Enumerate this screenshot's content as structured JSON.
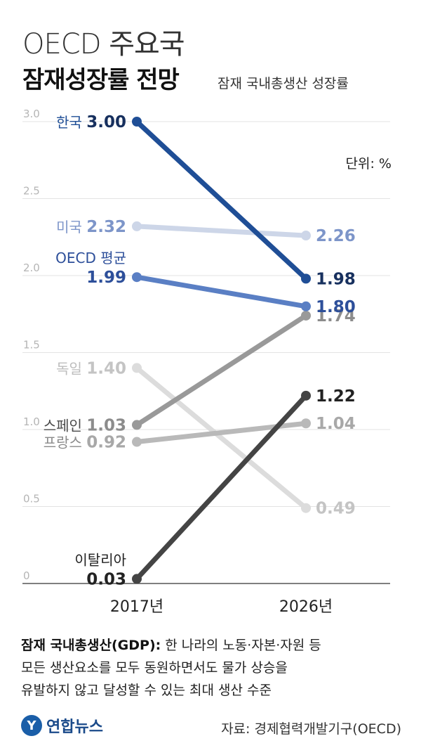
{
  "header": {
    "title_line1": "OECD 주요국",
    "title_line2": "잠재성장률 전망",
    "subtitle": "잠재 국내총생산 성장률",
    "unit": "단위: %"
  },
  "chart_data": {
    "type": "line",
    "categories": [
      "2017년",
      "2026년"
    ],
    "ylim": [
      0,
      3.0
    ],
    "yticks": [
      "0",
      "0.5",
      "1.0",
      "1.5",
      "2.0",
      "2.5",
      "3.0"
    ],
    "grid": true,
    "series": [
      {
        "name": "독일",
        "values": [
          1.4,
          0.49
        ],
        "color": "#dcdcdc",
        "label_color": "#bdbdbd",
        "value_color": "#c4c4c4",
        "value_labels": [
          "1.40",
          "0.49"
        ]
      },
      {
        "name": "프랑스",
        "values": [
          0.92,
          1.04
        ],
        "color": "#b9b9b9",
        "label_color": "#8a8a8a",
        "value_color": "#a8a8a8",
        "value_labels": [
          "0.92",
          "1.04"
        ]
      },
      {
        "name": "스페인",
        "values": [
          1.03,
          1.74
        ],
        "color": "#999999",
        "label_color": "#4a4a4a",
        "value_color": "#8c8c8c",
        "value_labels": [
          "1.03",
          "1.74"
        ]
      },
      {
        "name": "미국",
        "values": [
          2.32,
          2.26
        ],
        "color": "#cdd6e8",
        "label_color": "#7d95c9",
        "value_color": "#7d95c9",
        "value_labels": [
          "2.32",
          "2.26"
        ]
      },
      {
        "name": "OECD 평균",
        "values": [
          1.99,
          1.8
        ],
        "color": "#5a7fc4",
        "label_color": "#2d4f9a",
        "value_color": "#2d4f9a",
        "value_labels": [
          "1.99",
          "1.80"
        ]
      },
      {
        "name": "이탈리아",
        "values": [
          0.03,
          1.22
        ],
        "color": "#444444",
        "label_color": "#222222",
        "value_color": "#222222",
        "value_labels": [
          "0.03",
          "1.22"
        ]
      },
      {
        "name": "한국",
        "values": [
          3.0,
          1.98
        ],
        "color": "#1f4e96",
        "label_color": "#1f4e96",
        "value_color": "#17305e",
        "value_labels": [
          "3.00",
          "1.98"
        ]
      }
    ]
  },
  "note": {
    "term": "잠재 국내총생산(GDP):",
    "line1_rest": " 한 나라의 노동·자본·자원 등",
    "line2": "모든 생산요소를 모두 동원하면서도 물가 상승을",
    "line3": "유발하지 않고 달성할 수 있는 최대 생산 수준"
  },
  "footer": {
    "logo_text": "연합뉴스",
    "source": "자료: 경제협력개발기구(OECD)"
  }
}
